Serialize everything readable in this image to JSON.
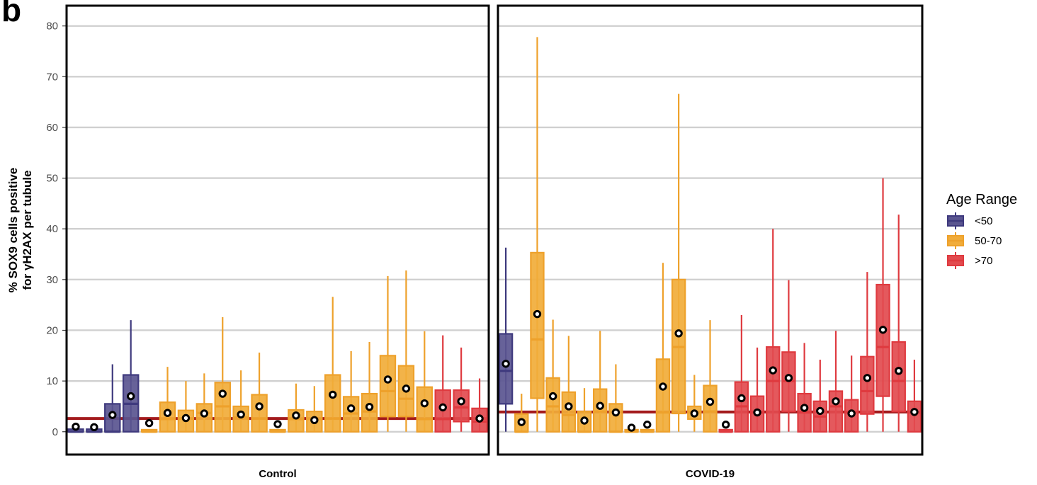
{
  "figure_label": "b",
  "chart_data": {
    "type": "boxplot",
    "ylabel_line1": "% SOX9 cells positive",
    "ylabel_line2": "for γH2AX per tubule",
    "ylim": [
      -4.5,
      84
    ],
    "y_ticks": [
      0,
      10,
      20,
      30,
      40,
      50,
      60,
      70,
      80
    ],
    "grid": true,
    "legend": {
      "title": "Age Range",
      "position": "right",
      "entries": [
        {
          "label": "<50",
          "key": "lt50"
        },
        {
          "label": "50-70",
          "key": "mid"
        },
        {
          "label": ">70",
          "key": "gt70"
        }
      ]
    },
    "colors": {
      "lt50": {
        "fill": "#5a5590",
        "stroke": "#3f3a7e"
      },
      "mid": {
        "fill": "#f1ac3a",
        "stroke": "#eea12b"
      },
      "gt70": {
        "fill": "#e24b4f",
        "stroke": "#df3a3f"
      },
      "reference": "#a31a1c",
      "grid": "#d0d0d0"
    },
    "panels": [
      {
        "label": "Control",
        "reference": 2.6,
        "boxes": [
          {
            "group": "lt50",
            "min": 0,
            "q1": 0,
            "median": 0,
            "q3": 0.5,
            "max": 0.5,
            "mean": 1.0
          },
          {
            "group": "lt50",
            "min": 0,
            "q1": 0,
            "median": 0,
            "q3": 0.5,
            "max": 0.5,
            "mean": 0.9
          },
          {
            "group": "lt50",
            "min": 0,
            "q1": 0,
            "median": 0,
            "q3": 5.5,
            "max": 13.3,
            "mean": 3.3
          },
          {
            "group": "lt50",
            "min": 0,
            "q1": 0,
            "median": 5.5,
            "q3": 11.2,
            "max": 22.0,
            "mean": 7.0
          },
          {
            "group": "mid",
            "min": 0,
            "q1": 0,
            "median": 0,
            "q3": 0.4,
            "max": 0.4,
            "mean": 1.7
          },
          {
            "group": "mid",
            "min": 0,
            "q1": 0,
            "median": 2.5,
            "q3": 5.8,
            "max": 12.8,
            "mean": 3.7
          },
          {
            "group": "mid",
            "min": 0,
            "q1": 0,
            "median": 2.6,
            "q3": 4.2,
            "max": 10.0,
            "mean": 2.7
          },
          {
            "group": "mid",
            "min": 0,
            "q1": 0,
            "median": 3.7,
            "q3": 5.5,
            "max": 11.5,
            "mean": 3.6
          },
          {
            "group": "mid",
            "min": 0,
            "q1": 0,
            "median": 5.0,
            "q3": 9.7,
            "max": 22.6,
            "mean": 7.5
          },
          {
            "group": "mid",
            "min": 0,
            "q1": 0,
            "median": 2.8,
            "q3": 5.0,
            "max": 12.1,
            "mean": 3.4
          },
          {
            "group": "mid",
            "min": 0,
            "q1": 0,
            "median": 2.6,
            "q3": 7.3,
            "max": 15.6,
            "mean": 5.0
          },
          {
            "group": "mid",
            "min": 0,
            "q1": 0,
            "median": 0,
            "q3": 0.4,
            "max": 0.4,
            "mean": 1.5
          },
          {
            "group": "mid",
            "min": 0,
            "q1": 0,
            "median": 2.5,
            "q3": 4.3,
            "max": 9.5,
            "mean": 3.2
          },
          {
            "group": "mid",
            "min": 0,
            "q1": 0,
            "median": 2.5,
            "q3": 4.0,
            "max": 9.0,
            "mean": 2.3
          },
          {
            "group": "mid",
            "min": 0,
            "q1": 0,
            "median": 2.6,
            "q3": 11.2,
            "max": 26.6,
            "mean": 7.3
          },
          {
            "group": "mid",
            "min": 0,
            "q1": 0,
            "median": 3.6,
            "q3": 6.9,
            "max": 15.9,
            "mean": 4.6
          },
          {
            "group": "mid",
            "min": 0,
            "q1": 0,
            "median": 4.0,
            "q3": 7.5,
            "max": 17.7,
            "mean": 4.9
          },
          {
            "group": "mid",
            "min": 0,
            "q1": 3.0,
            "median": 8.0,
            "q3": 15.0,
            "max": 30.7,
            "mean": 10.3
          },
          {
            "group": "mid",
            "min": 0,
            "q1": 3.0,
            "median": 6.5,
            "q3": 13.0,
            "max": 31.8,
            "mean": 8.5
          },
          {
            "group": "mid",
            "min": 0,
            "q1": 0,
            "median": 2.5,
            "q3": 8.8,
            "max": 19.8,
            "mean": 5.6
          },
          {
            "group": "gt70",
            "min": 0,
            "q1": 0,
            "median": 2.5,
            "q3": 8.2,
            "max": 19.0,
            "mean": 4.8
          },
          {
            "group": "gt70",
            "min": 0,
            "q1": 2.0,
            "median": 4.8,
            "q3": 8.2,
            "max": 16.6,
            "mean": 6.0
          },
          {
            "group": "gt70",
            "min": 0,
            "q1": 0,
            "median": 2.0,
            "q3": 4.6,
            "max": 10.5,
            "mean": 2.6
          }
        ]
      },
      {
        "label": "COVID-19",
        "reference": 3.9,
        "boxes": [
          {
            "group": "lt50",
            "min": 0,
            "q1": 5.5,
            "median": 12.0,
            "q3": 19.3,
            "max": 36.3,
            "mean": 13.4
          },
          {
            "group": "mid",
            "min": 0,
            "q1": 0,
            "median": 0,
            "q3": 3.5,
            "max": 7.5,
            "mean": 1.9
          },
          {
            "group": "mid",
            "min": 0,
            "q1": 6.6,
            "median": 18.2,
            "q3": 35.3,
            "max": 77.8,
            "mean": 23.2
          },
          {
            "group": "mid",
            "min": 0,
            "q1": 0,
            "median": 5.0,
            "q3": 10.6,
            "max": 22.1,
            "mean": 7.0
          },
          {
            "group": "mid",
            "min": 0,
            "q1": 0,
            "median": 3.3,
            "q3": 7.8,
            "max": 18.9,
            "mean": 5.0
          },
          {
            "group": "mid",
            "min": 0,
            "q1": 0,
            "median": 0,
            "q3": 4.0,
            "max": 8.6,
            "mean": 2.2
          },
          {
            "group": "mid",
            "min": 0,
            "q1": 0,
            "median": 4.0,
            "q3": 8.4,
            "max": 19.9,
            "mean": 5.1
          },
          {
            "group": "mid",
            "min": 0,
            "q1": 0,
            "median": 0,
            "q3": 5.5,
            "max": 13.3,
            "mean": 3.8
          },
          {
            "group": "mid",
            "min": 0,
            "q1": 0,
            "median": 0,
            "q3": 0.4,
            "max": 0.4,
            "mean": 0.8
          },
          {
            "group": "mid",
            "min": 0,
            "q1": 0,
            "median": 0,
            "q3": 0.4,
            "max": 0.4,
            "mean": 1.4
          },
          {
            "group": "mid",
            "min": 0,
            "q1": 0,
            "median": 3.8,
            "q3": 14.3,
            "max": 33.3,
            "mean": 8.9
          },
          {
            "group": "mid",
            "min": 0,
            "q1": 3.6,
            "median": 16.7,
            "q3": 30.0,
            "max": 66.6,
            "mean": 19.4
          },
          {
            "group": "mid",
            "min": 0,
            "q1": 2.5,
            "median": 3.8,
            "q3": 5.0,
            "max": 11.2,
            "mean": 3.6
          },
          {
            "group": "mid",
            "min": 0,
            "q1": 0,
            "median": 4.0,
            "q3": 9.1,
            "max": 22.0,
            "mean": 5.9
          },
          {
            "group": "gt70",
            "min": 0,
            "q1": 0,
            "median": 0,
            "q3": 0.4,
            "max": 0.4,
            "mean": 1.4
          },
          {
            "group": "gt70",
            "min": 0,
            "q1": 0,
            "median": 5.0,
            "q3": 9.8,
            "max": 23.0,
            "mean": 6.6
          },
          {
            "group": "gt70",
            "min": 0,
            "q1": 0,
            "median": 3.8,
            "q3": 7.0,
            "max": 16.6,
            "mean": 3.8
          },
          {
            "group": "gt70",
            "min": 0,
            "q1": 0,
            "median": 10.0,
            "q3": 16.7,
            "max": 40.0,
            "mean": 12.1
          },
          {
            "group": "gt70",
            "min": 0,
            "q1": 4.0,
            "median": 10.0,
            "q3": 15.7,
            "max": 29.9,
            "mean": 10.6
          },
          {
            "group": "gt70",
            "min": 0,
            "q1": 0,
            "median": 3.8,
            "q3": 7.5,
            "max": 17.5,
            "mean": 4.7
          },
          {
            "group": "gt70",
            "min": 0,
            "q1": 0,
            "median": 3.0,
            "q3": 6.0,
            "max": 14.2,
            "mean": 4.1
          },
          {
            "group": "gt70",
            "min": 0,
            "q1": 0,
            "median": 5.0,
            "q3": 8.0,
            "max": 19.9,
            "mean": 6.0
          },
          {
            "group": "gt70",
            "min": 0,
            "q1": 0,
            "median": 3.8,
            "q3": 6.3,
            "max": 15.0,
            "mean": 3.6
          },
          {
            "group": "gt70",
            "min": 0,
            "q1": 3.5,
            "median": 8.0,
            "q3": 14.8,
            "max": 31.5,
            "mean": 10.6
          },
          {
            "group": "gt70",
            "min": 0,
            "q1": 7.0,
            "median": 16.7,
            "q3": 29.0,
            "max": 50.0,
            "mean": 20.1
          },
          {
            "group": "gt70",
            "min": 0,
            "q1": 4.0,
            "median": 10.0,
            "q3": 17.7,
            "max": 42.8,
            "mean": 12.0
          },
          {
            "group": "gt70",
            "min": 0,
            "q1": 0,
            "median": 3.8,
            "q3": 6.0,
            "max": 14.2,
            "mean": 3.9
          }
        ]
      }
    ]
  }
}
